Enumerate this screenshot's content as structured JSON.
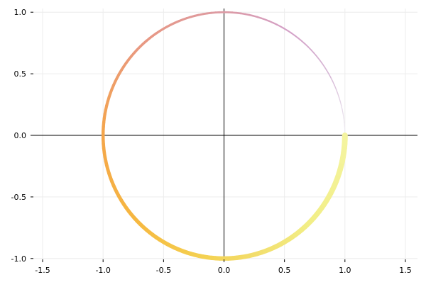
{
  "chart_data": {
    "type": "line",
    "title": "",
    "xlabel": "",
    "ylabel": "",
    "xlim": [
      -1.6,
      1.6
    ],
    "ylim": [
      -1.03,
      1.03
    ],
    "grid": true,
    "legend": "none",
    "axes_through_origin": true,
    "x_ticks": [
      -1.5,
      -1.0,
      -0.5,
      0.0,
      0.5,
      1.0,
      1.5
    ],
    "x_tick_labels": [
      "-1.5",
      "-1.0",
      "-0.5",
      "0.0",
      "0.5",
      "1.0",
      "1.5"
    ],
    "y_ticks": [
      -1.0,
      -0.5,
      0.0,
      0.5,
      1.0
    ],
    "y_tick_labels": [
      "-1.0",
      "-0.5",
      "0.0",
      "0.5",
      "1.0"
    ],
    "series": [
      {
        "shape": "unit circle",
        "center": [
          0,
          0
        ],
        "radius": 1.0,
        "start_angle_deg": 0,
        "end_angle_deg": 360,
        "line_width_start": 1,
        "line_width_end": 8,
        "color_stops": [
          {
            "angle_deg": 0,
            "color": "#f0f0f4"
          },
          {
            "angle_deg": 30,
            "color": "#d6b8d6"
          },
          {
            "angle_deg": 60,
            "color": "#d4a0c6"
          },
          {
            "angle_deg": 90,
            "color": "#dc9aa4"
          },
          {
            "angle_deg": 135,
            "color": "#e99880"
          },
          {
            "angle_deg": 180,
            "color": "#f4a54a"
          },
          {
            "angle_deg": 225,
            "color": "#f6b840"
          },
          {
            "angle_deg": 260,
            "color": "#f4d050"
          },
          {
            "angle_deg": 290,
            "color": "#f2e070"
          },
          {
            "angle_deg": 315,
            "color": "#f2ee86"
          },
          {
            "angle_deg": 360,
            "color": "#f4f4a0"
          }
        ]
      }
    ]
  }
}
